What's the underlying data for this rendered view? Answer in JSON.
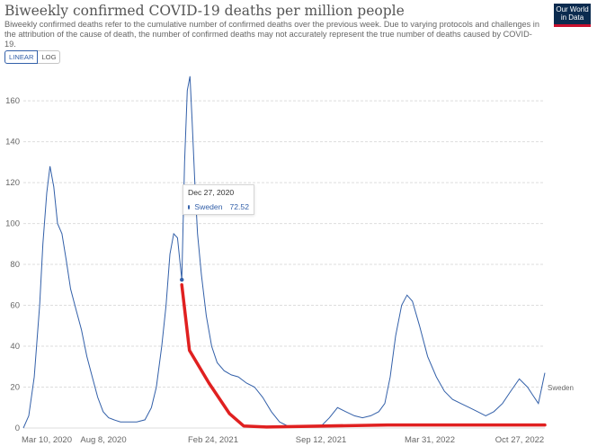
{
  "header": {
    "title": "Biweekly confirmed COVID-19 deaths per million people",
    "subtitle": "Biweekly confirmed deaths refer to the cumulative number of confirmed deaths over the previous week. Due to varying protocols and challenges in the attribution of the cause of death, the number of confirmed deaths may not accurately represent the true number of deaths caused by COVID-19.",
    "logo_line1": "Our World",
    "logo_line2": "in Data"
  },
  "controls": {
    "linear_label": "LINEAR",
    "log_label": "LOG"
  },
  "tooltip": {
    "date": "Dec 27, 2020",
    "series": "Sweden",
    "value": "72.52"
  },
  "colors": {
    "series": "#3360a9",
    "annotation": "#e02020",
    "grid": "#dddddd"
  },
  "chart_data": {
    "type": "line",
    "title": "Biweekly confirmed COVID-19 deaths per million people",
    "ylim": [
      0,
      175
    ],
    "yticks": [
      0,
      20,
      40,
      60,
      80,
      100,
      120,
      140,
      160
    ],
    "xlabels": [
      "Mar 10, 2020",
      "Aug 8, 2020",
      "Feb 24, 2021",
      "Sep 12, 2021",
      "Mar 31, 2022",
      "Oct 27, 2022"
    ],
    "xrange": [
      "2020-03-10",
      "2022-10-27"
    ],
    "grid": true,
    "series": [
      {
        "name": "Sweden",
        "color": "#3360a9",
        "x": [
          "2020-03-10",
          "2020-03-20",
          "2020-03-30",
          "2020-04-09",
          "2020-04-15",
          "2020-04-22",
          "2020-04-28",
          "2020-05-05",
          "2020-05-12",
          "2020-05-20",
          "2020-05-28",
          "2020-06-05",
          "2020-06-15",
          "2020-06-25",
          "2020-07-05",
          "2020-07-15",
          "2020-07-25",
          "2020-08-04",
          "2020-08-14",
          "2020-08-24",
          "2020-09-05",
          "2020-09-20",
          "2020-10-05",
          "2020-10-20",
          "2020-11-01",
          "2020-11-10",
          "2020-11-20",
          "2020-11-28",
          "2020-12-05",
          "2020-12-12",
          "2020-12-19",
          "2020-12-27",
          "2021-01-01",
          "2021-01-06",
          "2021-01-11",
          "2021-01-15",
          "2021-01-20",
          "2021-01-25",
          "2021-02-01",
          "2021-02-10",
          "2021-02-20",
          "2021-03-02",
          "2021-03-15",
          "2021-03-28",
          "2021-04-10",
          "2021-04-25",
          "2021-05-10",
          "2021-05-25",
          "2021-06-10",
          "2021-06-25",
          "2021-07-10",
          "2021-07-25",
          "2021-08-10",
          "2021-08-25",
          "2021-09-10",
          "2021-09-25",
          "2021-10-10",
          "2021-10-25",
          "2021-11-10",
          "2021-11-25",
          "2021-12-10",
          "2021-12-25",
          "2022-01-05",
          "2022-01-15",
          "2022-01-25",
          "2022-02-05",
          "2022-02-15",
          "2022-02-25",
          "2022-03-10",
          "2022-03-25",
          "2022-04-10",
          "2022-04-25",
          "2022-05-10",
          "2022-05-25",
          "2022-06-10",
          "2022-06-25",
          "2022-07-10",
          "2022-07-25",
          "2022-08-10",
          "2022-08-25",
          "2022-09-10",
          "2022-09-25",
          "2022-10-05",
          "2022-10-15",
          "2022-10-27"
        ],
        "values": [
          0,
          6,
          25,
          60,
          90,
          115,
          128,
          118,
          100,
          95,
          82,
          68,
          58,
          48,
          35,
          25,
          15,
          8,
          5,
          4,
          3,
          3,
          3,
          4,
          10,
          20,
          40,
          60,
          85,
          95,
          93,
          72.5,
          130,
          165,
          172,
          150,
          120,
          95,
          75,
          55,
          40,
          32,
          28,
          26,
          25,
          22,
          20,
          15,
          8,
          3,
          1,
          1,
          1,
          1,
          1,
          5,
          10,
          8,
          6,
          5,
          6,
          8,
          12,
          25,
          45,
          60,
          65,
          62,
          50,
          35,
          25,
          18,
          14,
          12,
          10,
          8,
          6,
          8,
          12,
          18,
          24,
          20,
          16,
          12,
          27
        ]
      }
    ]
  },
  "annotation": {
    "color": "#e02020",
    "x": [
      "2020-12-27",
      "2021-01-10",
      "2021-02-15",
      "2021-03-25",
      "2021-04-20",
      "2021-06-01",
      "2022-01-10",
      "2022-10-27"
    ],
    "values": [
      70,
      38,
      22,
      7,
      1,
      0.5,
      1.5,
      1.5
    ]
  },
  "series_label": "Sweden"
}
